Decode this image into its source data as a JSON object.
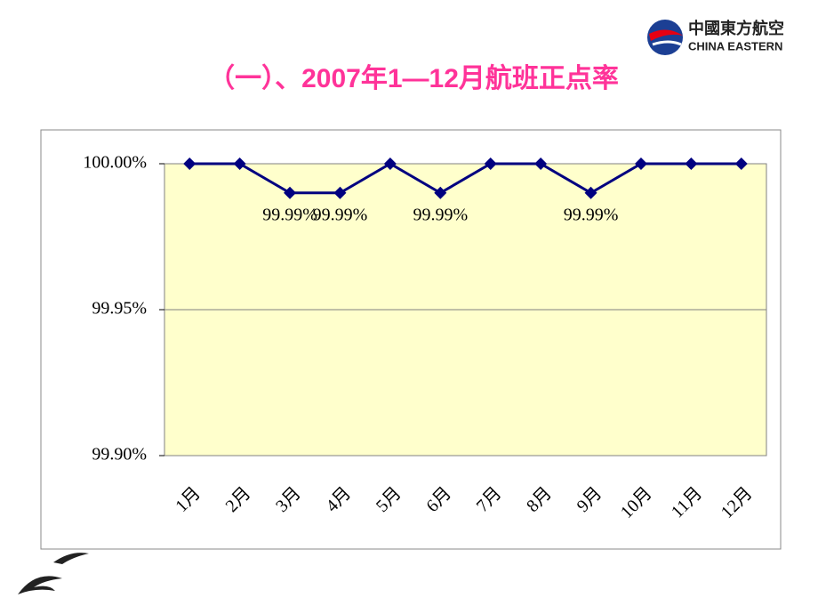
{
  "chart_data": {
    "type": "line",
    "title": "（一）、2007年1—12月航班正点率",
    "categories": [
      "1月",
      "2月",
      "3月",
      "4月",
      "5月",
      "6月",
      "7月",
      "8月",
      "9月",
      "10月",
      "11月",
      "12月"
    ],
    "values": [
      100,
      100,
      99.99,
      99.99,
      100,
      99.99,
      100,
      100,
      99.99,
      100,
      100,
      100
    ],
    "value_labels": [
      null,
      null,
      "99.99%",
      "99.99%",
      null,
      "99.99%",
      null,
      null,
      "99.99%",
      null,
      null,
      null
    ],
    "color": "#000080",
    "ylim": [
      99.9,
      100
    ],
    "yticks": [
      {
        "value": 99.9,
        "label": "99.90%"
      },
      {
        "value": 99.95,
        "label": "99.95%"
      },
      {
        "value": 100,
        "label": "100.00%"
      }
    ],
    "grid": true
  },
  "logo": {
    "cn": "中國東方航空",
    "en": "CHINA EASTERN"
  }
}
